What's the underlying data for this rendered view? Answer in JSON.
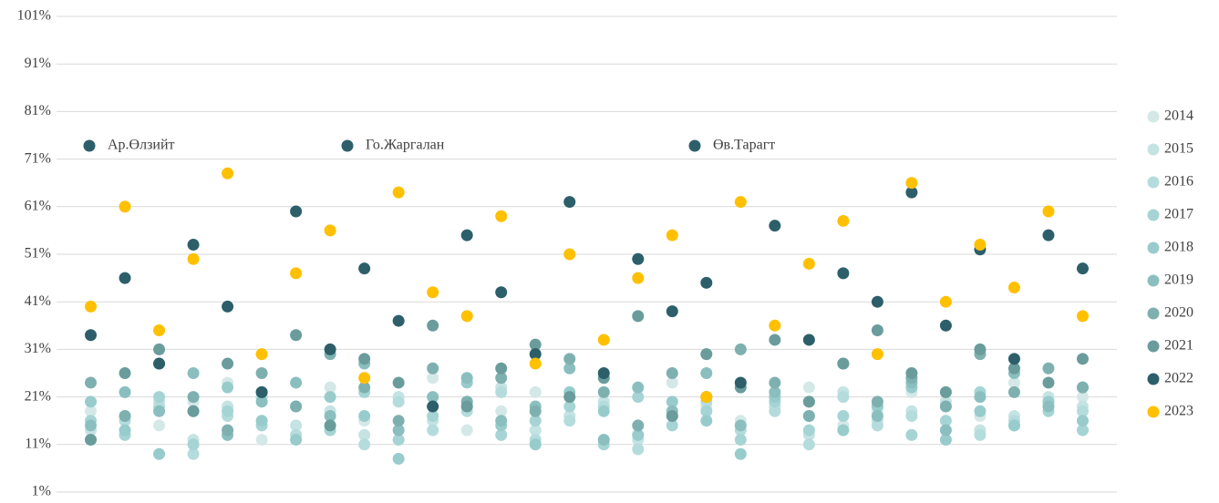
{
  "chart_data": {
    "type": "scatter",
    "annotations": [
      "Ар.Өлзийт",
      "Го.Жаргалан",
      "Өв.Тарагт"
    ],
    "x": [
      1,
      2,
      3,
      4,
      5,
      6,
      7,
      8,
      9,
      10,
      11,
      12,
      13,
      14,
      15,
      16,
      17,
      18,
      19,
      20,
      21,
      22,
      23,
      24,
      25,
      26,
      27,
      28,
      29,
      30
    ],
    "xlim": [
      0,
      31
    ],
    "ylim": [
      1,
      101
    ],
    "yticks": [
      {
        "value": 1,
        "label": "1%"
      },
      {
        "value": 11,
        "label": "11%"
      },
      {
        "value": 21,
        "label": "21%"
      },
      {
        "value": 31,
        "label": "31%"
      },
      {
        "value": 41,
        "label": "41%"
      },
      {
        "value": 51,
        "label": "51%"
      },
      {
        "value": 61,
        "label": "61%"
      },
      {
        "value": 71,
        "label": "71%"
      },
      {
        "value": 81,
        "label": "81%"
      },
      {
        "value": 91,
        "label": "91%"
      },
      {
        "value": 101,
        "label": "101%"
      }
    ],
    "grid": true,
    "legend": "right",
    "series": [
      {
        "name": "2014",
        "color": "#d5e8e8",
        "values": [
          18,
          22,
          15,
          20,
          24,
          12,
          19,
          23,
          16,
          21,
          25,
          14,
          18,
          22,
          17,
          20,
          13,
          24,
          19,
          16,
          21,
          23,
          15,
          18,
          22,
          20,
          17,
          24,
          19,
          21
        ]
      },
      {
        "name": "2015",
        "color": "#c5e3e3",
        "values": [
          14,
          17,
          20,
          12,
          19,
          22,
          15,
          18,
          13,
          21,
          16,
          19,
          23,
          14,
          17,
          20,
          12,
          18,
          21,
          15,
          19,
          13,
          22,
          16,
          18,
          20,
          14,
          17,
          21,
          19
        ]
      },
      {
        "name": "2016",
        "color": "#b5dcdc",
        "values": [
          12,
          16,
          19,
          9,
          17,
          21,
          13,
          15,
          11,
          20,
          14,
          18,
          22,
          12,
          16,
          19,
          10,
          17,
          20,
          14,
          18,
          11,
          21,
          15,
          17,
          19,
          13,
          16,
          20,
          18
        ]
      },
      {
        "name": "2017",
        "color": "#a6d4d4",
        "values": [
          16,
          13,
          21,
          11,
          18,
          15,
          19,
          14,
          22,
          12,
          17,
          20,
          13,
          16,
          19,
          11,
          21,
          15,
          18,
          12,
          20,
          14,
          17,
          19,
          13,
          16,
          22,
          15,
          18,
          14
        ]
      },
      {
        "name": "2018",
        "color": "#98cccc",
        "values": [
          20,
          14,
          9,
          18,
          23,
          16,
          12,
          21,
          17,
          8,
          19,
          24,
          15,
          11,
          22,
          18,
          13,
          20,
          16,
          9,
          21,
          17,
          14,
          19,
          23,
          12,
          18,
          15,
          20,
          16
        ]
      },
      {
        "name": "2019",
        "color": "#8bbfbf",
        "values": [
          15,
          22,
          18,
          26,
          13,
          20,
          24,
          17,
          28,
          14,
          21,
          25,
          16,
          19,
          27,
          12,
          23,
          18,
          26,
          15,
          22,
          20,
          28,
          17,
          24,
          14,
          21,
          26,
          19,
          23
        ]
      },
      {
        "name": "2020",
        "color": "#7fb0b0",
        "values": [
          24,
          17,
          28,
          21,
          14,
          26,
          19,
          30,
          23,
          16,
          27,
          20,
          25,
          18,
          29,
          22,
          15,
          26,
          21,
          31,
          24,
          17,
          28,
          20,
          25,
          19,
          30,
          22,
          27,
          23
        ]
      },
      {
        "name": "2021",
        "color": "#6a9c9c",
        "values": [
          12,
          26,
          31,
          18,
          28,
          22,
          34,
          15,
          29,
          24,
          36,
          19,
          27,
          32,
          21,
          25,
          38,
          17,
          30,
          23,
          33,
          20,
          28,
          35,
          26,
          22,
          31,
          27,
          24,
          29
        ]
      },
      {
        "name": "2022",
        "color": "#2d5f6b",
        "values": [
          34,
          46,
          28,
          53,
          40,
          22,
          60,
          31,
          48,
          37,
          19,
          55,
          43,
          30,
          62,
          26,
          50,
          39,
          45,
          24,
          57,
          33,
          47,
          41,
          64,
          36,
          52,
          29,
          55,
          48
        ]
      },
      {
        "name": "2023",
        "color": "#ffc000",
        "values": [
          40,
          61,
          35,
          50,
          68,
          30,
          47,
          56,
          25,
          64,
          43,
          38,
          59,
          28,
          51,
          33,
          46,
          55,
          21,
          62,
          36,
          49,
          58,
          30,
          66,
          41,
          53,
          44,
          60,
          38
        ]
      }
    ]
  }
}
